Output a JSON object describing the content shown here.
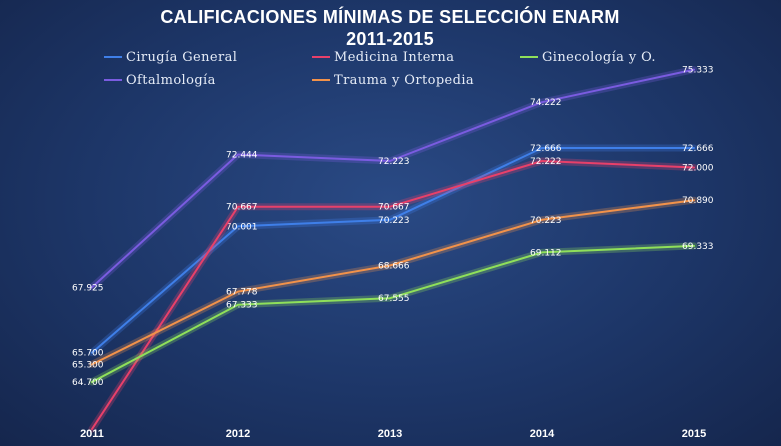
{
  "chart_data": {
    "type": "line",
    "title": "CALIFICACIONES MÍNIMAS DE SELECCIÓN ENARM",
    "subtitle": "2011-2015",
    "xlabel": "",
    "ylabel": "",
    "categories": [
      "2011",
      "2012",
      "2013",
      "2014",
      "2015"
    ],
    "ylim": [
      63.0,
      76.0
    ],
    "grid": false,
    "legend_position": "top",
    "series": [
      {
        "name": "Cirugía General",
        "color": "#3f7fe8",
        "values": [
          65.7,
          70.001,
          70.223,
          72.666,
          72.666
        ],
        "labels": [
          "65.700",
          "70.001",
          "70.223",
          "72.666",
          "72.666"
        ]
      },
      {
        "name": "Medicina Interna",
        "color": "#e8406a",
        "values": [
          63.1,
          70.667,
          70.667,
          72.222,
          72.0
        ],
        "labels": [
          "",
          "70.667",
          "70.667",
          "72.222",
          "72.000"
        ]
      },
      {
        "name": "Ginecología y O.",
        "color": "#8fe05a",
        "values": [
          64.7,
          67.333,
          67.555,
          69.112,
          69.333
        ],
        "labels": [
          "64.700",
          "67.333",
          "67.555",
          "69.112",
          "69.333"
        ]
      },
      {
        "name": "Oftalmología",
        "color": "#7a5ce0",
        "values": [
          67.925,
          72.444,
          72.223,
          74.222,
          75.333
        ],
        "labels": [
          "67.925",
          "72.444",
          "72.223",
          "74.222",
          "75.333"
        ]
      },
      {
        "name": "Trauma y Ortopedia",
        "color": "#f2924a",
        "values": [
          65.3,
          67.778,
          68.666,
          70.223,
          70.89
        ],
        "labels": [
          "65.300",
          "67.778",
          "68.666",
          "70.223",
          "70.890"
        ]
      }
    ]
  }
}
